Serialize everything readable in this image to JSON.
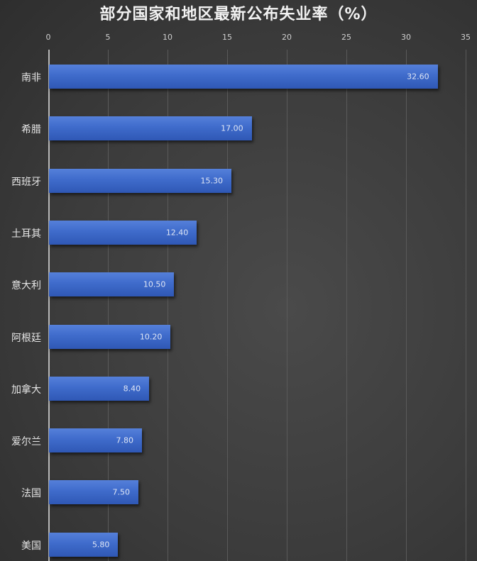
{
  "chart_data": {
    "type": "bar",
    "orientation": "horizontal",
    "title": "部分国家和地区最新公布失业率（%）",
    "xlabel": "",
    "ylabel": "",
    "xlim": [
      0,
      35
    ],
    "x_ticks": [
      "0",
      "5",
      "10",
      "15",
      "20",
      "25",
      "30",
      "35"
    ],
    "x_axis_position": "top",
    "grid": true,
    "legend": null,
    "categories": [
      "南非",
      "希腊",
      "西班牙",
      "土耳其",
      "意大利",
      "阿根廷",
      "加拿大",
      "爱尔兰",
      "法国",
      "美国"
    ],
    "values": [
      32.6,
      17.0,
      15.3,
      12.4,
      10.5,
      10.2,
      8.4,
      7.8,
      7.5,
      5.8
    ],
    "value_labels": [
      "32.60",
      "17.00",
      "15.30",
      "12.40",
      "10.50",
      "10.20",
      "8.40",
      "7.80",
      "7.50",
      "5.80"
    ],
    "bar_color": "#3f6bcb"
  },
  "colors": {
    "background": "#3c3c3c",
    "bar": "#3f6bcb",
    "text": "#e6e6e6"
  }
}
